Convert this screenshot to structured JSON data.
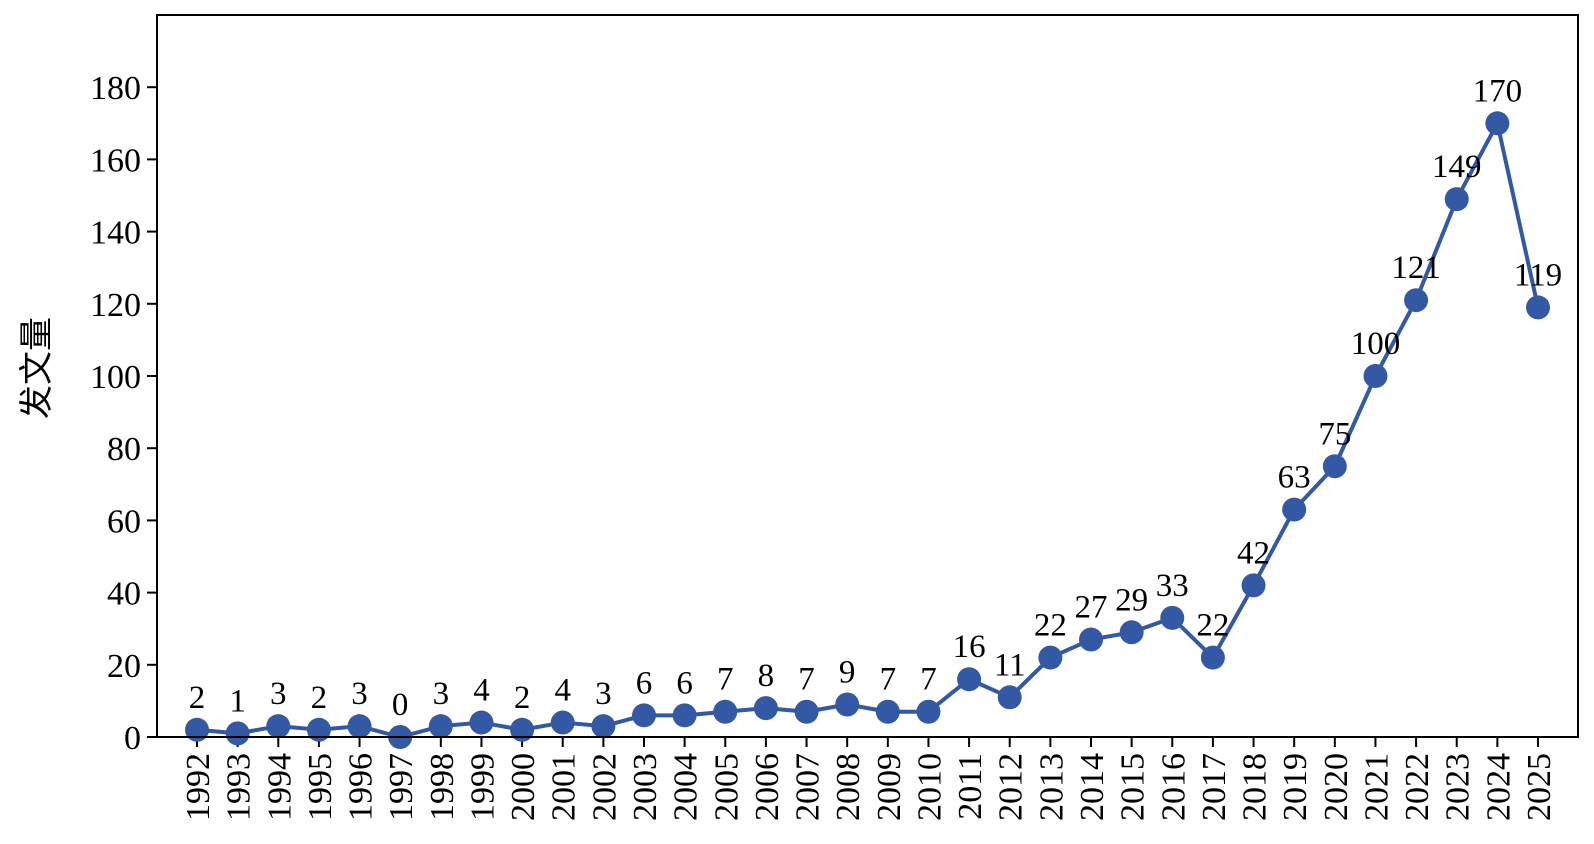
{
  "chart_data": {
    "type": "line",
    "title": "",
    "xlabel": "",
    "ylabel": "发文量",
    "x": [
      "1992",
      "1993",
      "1994",
      "1995",
      "1996",
      "1997",
      "1998",
      "1999",
      "2000",
      "2001",
      "2002",
      "2003",
      "2004",
      "2005",
      "2006",
      "2007",
      "2008",
      "2009",
      "2010",
      "2011",
      "2012",
      "2013",
      "2014",
      "2015",
      "2016",
      "2017",
      "2018",
      "2019",
      "2020",
      "2021",
      "2022",
      "2023",
      "2024",
      "2025"
    ],
    "series": [
      {
        "values": [
          2,
          1,
          3,
          2,
          3,
          0,
          3,
          4,
          2,
          4,
          3,
          6,
          6,
          7,
          8,
          7,
          9,
          7,
          7,
          16,
          11,
          22,
          27,
          29,
          33,
          22,
          42,
          63,
          75,
          100,
          121,
          149,
          170,
          119
        ],
        "color": "#3358a4"
      }
    ],
    "ylim": [
      0,
      200
    ],
    "yticks": [
      0,
      20,
      40,
      60,
      80,
      100,
      120,
      140,
      160,
      180
    ],
    "grid": false,
    "legend": "none",
    "data_labels": true
  }
}
